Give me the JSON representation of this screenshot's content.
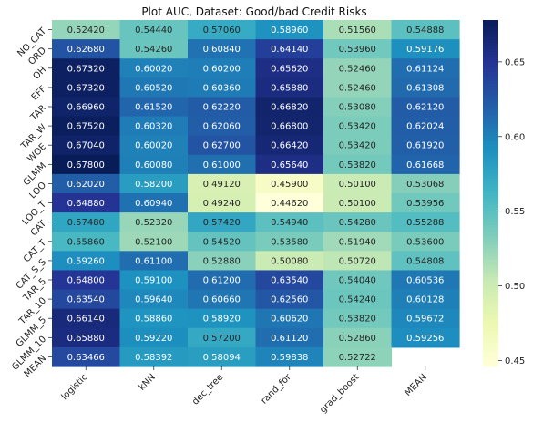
{
  "chart_data": {
    "type": "heatmap",
    "title": "Plot AUC, Dataset: Good/bad Credit Risks",
    "rows": [
      "NO_CAT",
      "ORD",
      "OH",
      "EFF",
      "TAR",
      "TAR_W",
      "WOE",
      "GLMM",
      "LOO",
      "LOO_T",
      "CAT",
      "CAT_T",
      "CAT_S_S",
      "TAR_5",
      "TAR_10",
      "GLMM_5",
      "GLMM_10",
      "MEAN"
    ],
    "columns": [
      "logistic",
      "kNN",
      "dec_tree",
      "rand_for",
      "grad_boost",
      "MEAN"
    ],
    "values": [
      [
        "0.52420",
        "0.54440",
        "0.57060",
        "0.58960",
        "0.51560",
        "0.54888"
      ],
      [
        "0.62680",
        "0.54260",
        "0.60840",
        "0.64140",
        "0.53960",
        "0.59176"
      ],
      [
        "0.67320",
        "0.60020",
        "0.60200",
        "0.65620",
        "0.52460",
        "0.61124"
      ],
      [
        "0.67320",
        "0.60520",
        "0.60360",
        "0.65880",
        "0.52460",
        "0.61308"
      ],
      [
        "0.66960",
        "0.61520",
        "0.62220",
        "0.66820",
        "0.53080",
        "0.62120"
      ],
      [
        "0.67520",
        "0.60320",
        "0.62060",
        "0.66800",
        "0.53420",
        "0.62024"
      ],
      [
        "0.67040",
        "0.60020",
        "0.62700",
        "0.66420",
        "0.53420",
        "0.61920"
      ],
      [
        "0.67800",
        "0.60080",
        "0.61000",
        "0.65640",
        "0.53820",
        "0.61668"
      ],
      [
        "0.62020",
        "0.58200",
        "0.49120",
        "0.45900",
        "0.50100",
        "0.53068"
      ],
      [
        "0.64880",
        "0.60940",
        "0.49240",
        "0.44620",
        "0.50100",
        "0.53956"
      ],
      [
        "0.57480",
        "0.52320",
        "0.57420",
        "0.54940",
        "0.54280",
        "0.55288"
      ],
      [
        "0.55860",
        "0.52100",
        "0.54520",
        "0.53580",
        "0.51940",
        "0.53600"
      ],
      [
        "0.59260",
        "0.61100",
        "0.52880",
        "0.50080",
        "0.50720",
        "0.54808"
      ],
      [
        "0.64800",
        "0.59100",
        "0.61200",
        "0.63540",
        "0.54040",
        "0.60536"
      ],
      [
        "0.63540",
        "0.59640",
        "0.60660",
        "0.62560",
        "0.54240",
        "0.60128"
      ],
      [
        "0.66140",
        "0.58860",
        "0.58920",
        "0.60620",
        "0.53820",
        "0.59672"
      ],
      [
        "0.65880",
        "0.59220",
        "0.57200",
        "0.61120",
        "0.52860",
        "0.59256"
      ],
      [
        "0.63466",
        "0.58392",
        "0.58094",
        "0.59838",
        "0.52722",
        null
      ]
    ],
    "vmin": 0.446,
    "vmax": 0.678,
    "colormap": "YlGnBu",
    "colorbar_ticks": [
      "0.45",
      "0.50",
      "0.55",
      "0.60",
      "0.65"
    ]
  }
}
